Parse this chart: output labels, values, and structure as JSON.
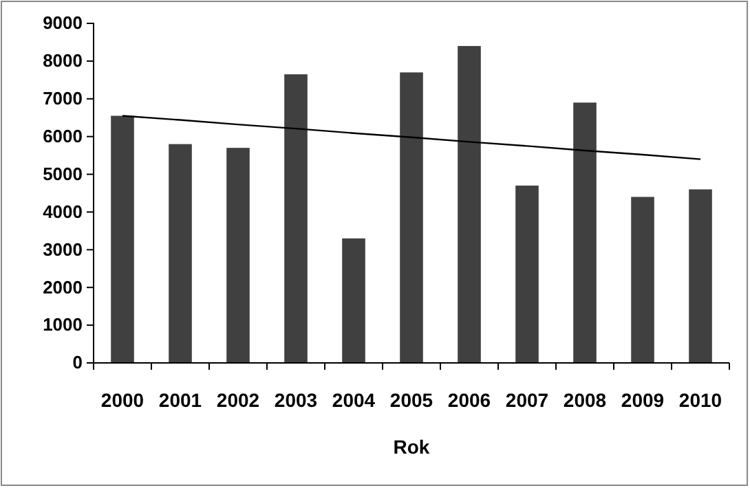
{
  "chart_data": {
    "type": "bar",
    "xlabel": "Rok",
    "categories": [
      "2000",
      "2001",
      "2002",
      "2003",
      "2004",
      "2005",
      "2006",
      "2007",
      "2008",
      "2009",
      "2010"
    ],
    "series": [
      {
        "color": "#404040",
        "values": [
          6550,
          5800,
          5700,
          7650,
          3300,
          7700,
          8400,
          4700,
          6900,
          4400,
          4600
        ]
      },
      {
        "type": "line",
        "color": "#000000",
        "values": [
          6550,
          6440,
          6320,
          6210,
          6090,
          5980,
          5860,
          5750,
          5630,
          5520,
          5400
        ]
      }
    ],
    "ylim": [
      0,
      9000
    ],
    "yticks": [
      0,
      1000,
      2000,
      3000,
      4000,
      5000,
      6000,
      7000,
      8000,
      9000
    ],
    "grid": false
  }
}
